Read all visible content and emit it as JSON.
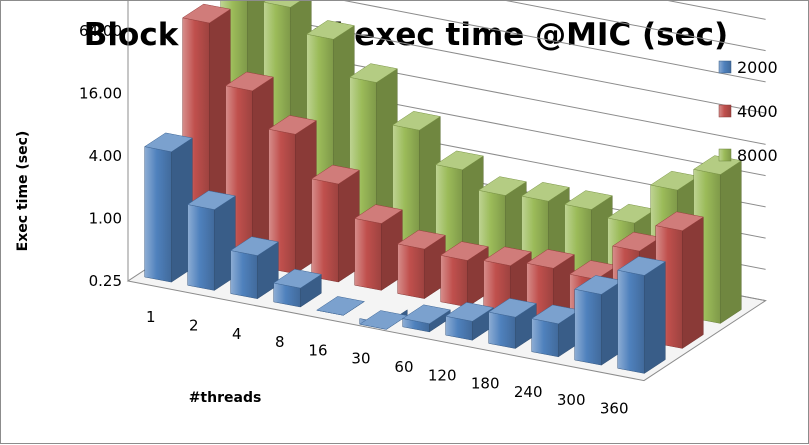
{
  "chart_data": {
    "type": "bar",
    "subtype": "3d-clustered-columns",
    "title": "Block Diagonal exec time @MIC (sec)",
    "xlabel": "#threads",
    "ylabel": "Exec time (sec)",
    "y_scale": "log2",
    "ylim": [
      0.25,
      128
    ],
    "y_ticks": [
      "0.25",
      "1.00",
      "4.00",
      "16.00",
      "64.00"
    ],
    "categories": [
      "1",
      "2",
      "4",
      "8",
      "16",
      "30",
      "60",
      "120",
      "180",
      "240",
      "300",
      "360"
    ],
    "series": [
      {
        "name": "2000",
        "color": "#4f81bd",
        "values": [
          4.5,
          1.5,
          0.65,
          0.38,
          0.25,
          0.22,
          0.3,
          0.38,
          0.5,
          0.52,
          1.2,
          2.2
        ]
      },
      {
        "name": "4000",
        "color": "#c0504d",
        "values": [
          45,
          12,
          5.5,
          2.2,
          1.1,
          0.75,
          0.7,
          0.75,
          0.85,
          0.8,
          1.8,
          3.4
        ]
      },
      {
        "name": "8000",
        "color": "#9bbb59",
        "values": [
          100,
          44,
          26,
          12,
          5,
          2.5,
          1.7,
          1.8,
          1.8,
          1.6,
          4,
          6.8
        ]
      }
    ],
    "grid": true,
    "legend": "right"
  }
}
